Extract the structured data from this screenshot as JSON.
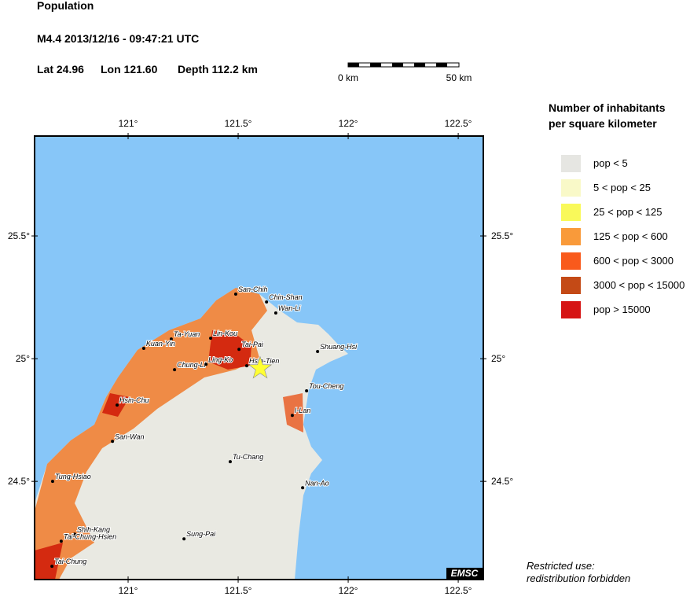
{
  "header": {
    "title": "Population",
    "event": "M4.4  2013/12/16 - 09:47:21 UTC",
    "lat": "Lat 24.96",
    "lon": "Lon 121.60",
    "depth": "Depth 112.2 km"
  },
  "scale": {
    "start": "0 km",
    "end": "50 km"
  },
  "map": {
    "lonlim": [
      120.575,
      122.614
    ],
    "latlim": [
      24.1,
      25.907
    ],
    "lon_ticks": [
      {
        "value": 121,
        "label": "121°"
      },
      {
        "value": 121.5,
        "label": "121.5°"
      },
      {
        "value": 122,
        "label": "122°"
      },
      {
        "value": 122.5,
        "label": "122.5°"
      }
    ],
    "lat_ticks": [
      {
        "value": 24.5,
        "label": "24.5°"
      },
      {
        "value": 25,
        "label": "25°"
      },
      {
        "value": 25.5,
        "label": "25.5°"
      }
    ],
    "epicenter": {
      "lat": 24.96,
      "lon": 121.6
    },
    "cities": [
      {
        "name": "San-Chih",
        "lon": 121.489,
        "lat": 25.263
      },
      {
        "name": "Chin-Shan",
        "lon": 121.629,
        "lat": 25.231
      },
      {
        "name": "Wan-Li",
        "lon": 121.671,
        "lat": 25.186
      },
      {
        "name": "Ta-Yuan",
        "lon": 121.196,
        "lat": 25.08
      },
      {
        "name": "Lin-Kou",
        "lon": 121.375,
        "lat": 25.083
      },
      {
        "name": "Tai-Pai",
        "lon": 121.504,
        "lat": 25.038
      },
      {
        "name": "Kuan-Yin",
        "lon": 121.071,
        "lat": 25.042
      },
      {
        "name": "Shuang-Hsi",
        "lon": 121.861,
        "lat": 25.029
      },
      {
        "name": "Chung-Li",
        "lon": 121.211,
        "lat": 24.955
      },
      {
        "name": "Ling-Ko",
        "lon": 121.354,
        "lat": 24.977
      },
      {
        "name": "Hsin-Tien",
        "lon": 121.539,
        "lat": 24.971
      },
      {
        "name": "Tou-Cheng",
        "lon": 121.811,
        "lat": 24.869
      },
      {
        "name": "Hsin-Chu",
        "lon": 120.95,
        "lat": 24.811
      },
      {
        "name": "I-Lan",
        "lon": 121.746,
        "lat": 24.769
      },
      {
        "name": "San-Wan",
        "lon": 120.929,
        "lat": 24.663
      },
      {
        "name": "Tu-Chang",
        "lon": 121.464,
        "lat": 24.58
      },
      {
        "name": "Tung-Hsiao",
        "lon": 120.657,
        "lat": 24.5
      },
      {
        "name": "Nan-Ao",
        "lon": 121.793,
        "lat": 24.474
      },
      {
        "name": "Shih-Kang",
        "lon": 120.757,
        "lat": 24.285
      },
      {
        "name": "Tai-Chung-Hsien",
        "lon": 120.696,
        "lat": 24.256
      },
      {
        "name": "Sung-Pai",
        "lon": 121.254,
        "lat": 24.266
      },
      {
        "name": "Tai-Chung",
        "lon": 120.654,
        "lat": 24.154
      }
    ],
    "logo": "EMSC"
  },
  "legend": {
    "title": [
      "Number of inhabitants",
      "per square kilometer"
    ],
    "items": [
      {
        "label": "pop < 5",
        "color": "#e6e6e2"
      },
      {
        "label": "5 < pop < 25",
        "color": "#f9f9c8"
      },
      {
        "label": "25 < pop < 125",
        "color": "#f9f95a"
      },
      {
        "label": "125 < pop < 600",
        "color": "#f99a3a"
      },
      {
        "label": "600 < pop < 3000",
        "color": "#f95a1c"
      },
      {
        "label": "3000 < pop < 15000",
        "color": "#c44a16"
      },
      {
        "label": "pop > 15000",
        "color": "#d61414"
      }
    ]
  },
  "footer": [
    "Restricted use:",
    "redistribution forbidden"
  ]
}
